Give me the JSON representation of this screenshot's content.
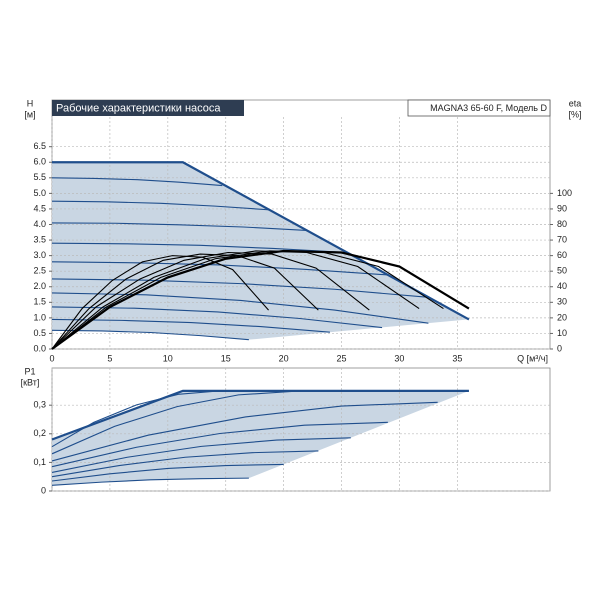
{
  "chart_data": [
    {
      "type": "line",
      "title": "Рабочие характеристики насоса",
      "model": "MAGNA3 65-60 F, Модель D",
      "ylabel": "H",
      "yunit": "[м]",
      "y2label": "eta",
      "y2unit": "[%]",
      "xlabel": "Q [м³/ч]",
      "xlim": [
        0,
        43
      ],
      "ylim": [
        0,
        8
      ],
      "y2lim": [
        0,
        160
      ],
      "xticks": [
        0,
        5,
        10,
        15,
        20,
        25,
        30,
        35
      ],
      "yticks": [
        {
          "value": 0,
          "label": "0.0"
        },
        0.5,
        {
          "value": 1,
          "label": "1.0"
        },
        1.5,
        {
          "value": 2,
          "label": "2.0"
        },
        2.5,
        {
          "value": 3,
          "label": "3.0"
        },
        3.5,
        {
          "value": 4,
          "label": "4.0"
        },
        4.5,
        {
          "value": 5,
          "label": "5.0"
        },
        5.5,
        {
          "value": 6,
          "label": "6.0"
        },
        6.5
      ],
      "y2ticks": [
        0,
        10,
        20,
        30,
        40,
        50,
        60,
        70,
        80,
        90,
        100
      ],
      "grid": true,
      "xtick_labels": true,
      "shade": "#c9d6e3",
      "series": [
        {
          "color": "#1f4e8c",
          "x": [
            0,
            11.3,
            36
          ],
          "values": [
            6,
            6,
            0.95
          ]
        },
        {
          "color": "#1f4e8c",
          "x": [
            0,
            3.7,
            7.4,
            11,
            14.7
          ],
          "values": [
            5.5,
            5.48,
            5.44,
            5.36,
            5.25
          ]
        },
        {
          "color": "#1f4e8c",
          "x": [
            0,
            4.7,
            9.4,
            14.1,
            18.8
          ],
          "values": [
            4.75,
            4.73,
            4.68,
            4.59,
            4.47
          ]
        },
        {
          "color": "#1f4e8c",
          "x": [
            0,
            5.5,
            11,
            16.5,
            22
          ],
          "values": [
            4.05,
            4.04,
            3.99,
            3.92,
            3.81
          ]
        },
        {
          "color": "#1f4e8c",
          "x": [
            0,
            6.4,
            12.8,
            19.1,
            25.5
          ],
          "values": [
            3.4,
            3.38,
            3.33,
            3.23,
            3.1
          ]
        },
        {
          "color": "#1f4e8c",
          "x": [
            0,
            7.3,
            14.5,
            21.8,
            29
          ],
          "values": [
            2.8,
            2.77,
            2.7,
            2.56,
            2.38
          ]
        },
        {
          "color": "#1f4e8c",
          "x": [
            0,
            8.1,
            16.3,
            24.4,
            32.5
          ],
          "values": [
            2.25,
            2.21,
            2.1,
            1.92,
            1.66
          ]
        },
        {
          "color": "#1f4e8c",
          "x": [
            0,
            8.1,
            16.3,
            24.4,
            32.5
          ],
          "values": [
            1.8,
            1.74,
            1.56,
            1.25,
            0.83
          ]
        },
        {
          "color": "#1f4e8c",
          "x": [
            0,
            7.1,
            14.3,
            21.4,
            28.5
          ],
          "values": [
            1.35,
            1.31,
            1.19,
            0.98,
            0.69
          ]
        },
        {
          "color": "#1f4e8c",
          "x": [
            0,
            6,
            12,
            18,
            24
          ],
          "values": [
            0.95,
            0.92,
            0.85,
            0.72,
            0.54
          ]
        },
        {
          "color": "#1f4e8c",
          "x": [
            0,
            4.3,
            8.5,
            12.8,
            17
          ],
          "values": [
            0.6,
            0.58,
            0.53,
            0.43,
            0.3
          ]
        },
        {
          "color": "#000000",
          "axis": "y2",
          "x": [
            0,
            5,
            10,
            15,
            20,
            25,
            30,
            36
          ],
          "values": [
            0,
            27,
            46,
            58,
            63,
            62,
            53,
            26
          ]
        },
        {
          "color": "#000000",
          "axis": "y2",
          "x": [
            0,
            4.7,
            9.4,
            14.1,
            18.8,
            23.5,
            28.2,
            33.8
          ],
          "values": [
            0,
            27,
            46,
            58,
            63,
            62,
            53,
            26
          ]
        },
        {
          "color": "#000000",
          "axis": "y2",
          "x": [
            0,
            4.4,
            8.8,
            13.2,
            17.6,
            22,
            26.4,
            31.7
          ],
          "values": [
            0,
            27,
            46,
            58,
            63,
            62,
            53,
            26
          ]
        },
        {
          "color": "#000000",
          "axis": "y2",
          "x": [
            0,
            3.8,
            7.6,
            11.4,
            15.2,
            19,
            22.8,
            27.4
          ],
          "values": [
            0,
            27,
            45,
            57,
            62,
            61,
            52,
            25
          ]
        },
        {
          "color": "#000000",
          "axis": "y2",
          "x": [
            0,
            3.2,
            6.4,
            9.6,
            12.8,
            16,
            19.2,
            23
          ],
          "values": [
            0,
            26,
            45,
            57,
            61,
            60,
            52,
            25
          ]
        },
        {
          "color": "#000000",
          "axis": "y2",
          "x": [
            0,
            2.6,
            5.2,
            7.8,
            10.4,
            13,
            15.6,
            18.7
          ],
          "values": [
            0,
            26,
            44,
            56,
            60,
            59,
            51,
            25
          ]
        }
      ]
    },
    {
      "type": "line",
      "ylabel": "P1",
      "yunit": "[кВт]",
      "xlim": [
        0,
        43
      ],
      "ylim": [
        0,
        0.43
      ],
      "xticks": [
        0,
        5,
        10,
        15,
        20,
        25,
        30,
        35
      ],
      "yticks": [
        0,
        {
          "value": 0.1,
          "label": "0,1"
        },
        {
          "value": 0.2,
          "label": "0,2"
        },
        {
          "value": 0.3,
          "label": "0,3"
        }
      ],
      "grid": true,
      "xtick_labels": false,
      "shade": "#c9d6e3",
      "series": [
        {
          "color": "#1f4e8c",
          "x": [
            0,
            11.3,
            36
          ],
          "values": [
            0.18,
            0.35,
            0.35
          ]
        },
        {
          "color": "#1f4e8c",
          "x": [
            0,
            3.6,
            7.3,
            10.9,
            14.5
          ],
          "values": [
            0.155,
            0.24,
            0.301,
            0.338,
            0.35
          ]
        },
        {
          "color": "#1f4e8c",
          "x": [
            0,
            5.4,
            10.8,
            16.1,
            21.5
          ],
          "values": [
            0.13,
            0.226,
            0.295,
            0.336,
            0.35
          ]
        },
        {
          "color": "#1f4e8c",
          "x": [
            0,
            8.3,
            16.7,
            25,
            33.3
          ],
          "values": [
            0.105,
            0.195,
            0.259,
            0.297,
            0.31
          ]
        },
        {
          "color": "#1f4e8c",
          "x": [
            0,
            7.3,
            14.5,
            21.8,
            29
          ],
          "values": [
            0.085,
            0.153,
            0.201,
            0.23,
            0.24
          ]
        },
        {
          "color": "#1f4e8c",
          "x": [
            0,
            6.5,
            12.9,
            19.4,
            25.8
          ],
          "values": [
            0.065,
            0.118,
            0.156,
            0.178,
            0.186
          ]
        },
        {
          "color": "#1f4e8c",
          "x": [
            0,
            5.8,
            11.5,
            17.3,
            23
          ],
          "values": [
            0.05,
            0.089,
            0.118,
            0.134,
            0.14
          ]
        },
        {
          "color": "#1f4e8c",
          "x": [
            0,
            5,
            10,
            15,
            20
          ],
          "values": [
            0.035,
            0.06,
            0.079,
            0.089,
            0.093
          ]
        },
        {
          "color": "#1f4e8c",
          "x": [
            0,
            4.3,
            8.5,
            12.8,
            17
          ],
          "values": [
            0.02,
            0.031,
            0.039,
            0.043,
            0.045
          ]
        }
      ]
    }
  ]
}
